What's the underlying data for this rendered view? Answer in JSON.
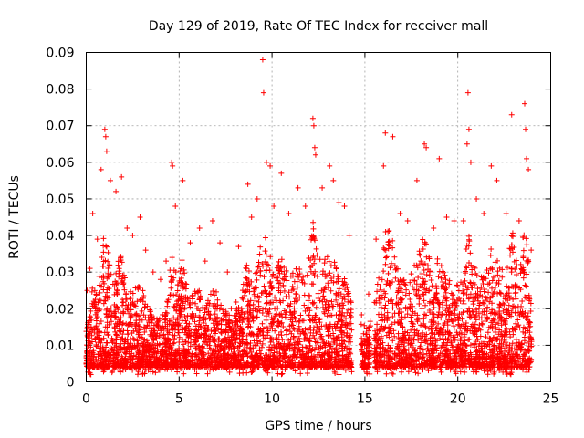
{
  "chart_data": {
    "type": "scatter",
    "title": "Day 129 of 2019, Rate Of TEC Index for receiver mall",
    "xlabel": "GPS time / hours",
    "ylabel": "ROTI / TECUs",
    "xlim": [
      0,
      25
    ],
    "ylim": [
      0,
      0.09
    ],
    "xticks": [
      0,
      5,
      10,
      15,
      20,
      25
    ],
    "xtick_labels": [
      "0",
      "5",
      "10",
      "15",
      "20",
      "25"
    ],
    "yticks": [
      0,
      0.01,
      0.02,
      0.03,
      0.04,
      0.05,
      0.06,
      0.07,
      0.08,
      0.09
    ],
    "ytick_labels": [
      "0",
      "0.01",
      "0.02",
      "0.03",
      "0.04",
      "0.05",
      "0.06",
      "0.07",
      "0.08",
      "0.09"
    ],
    "grid": true,
    "marker": "+",
    "color": "#ff0000",
    "data_gaps_hours": [
      [
        14.3,
        14.8
      ],
      [
        15.3,
        15.5
      ]
    ],
    "series": [
      {
        "name": "ROTI",
        "points": [
          [
            0.05,
            0.025
          ],
          [
            0.2,
            0.031
          ],
          [
            0.35,
            0.046
          ],
          [
            0.6,
            0.039
          ],
          [
            0.8,
            0.058
          ],
          [
            1.0,
            0.069
          ],
          [
            1.05,
            0.067
          ],
          [
            1.1,
            0.063
          ],
          [
            1.3,
            0.055
          ],
          [
            1.6,
            0.052
          ],
          [
            1.9,
            0.056
          ],
          [
            2.2,
            0.042
          ],
          [
            2.5,
            0.04
          ],
          [
            2.9,
            0.045
          ],
          [
            3.2,
            0.036
          ],
          [
            3.6,
            0.03
          ],
          [
            4.0,
            0.028
          ],
          [
            4.3,
            0.033
          ],
          [
            4.6,
            0.06
          ],
          [
            4.65,
            0.059
          ],
          [
            4.8,
            0.048
          ],
          [
            5.2,
            0.055
          ],
          [
            5.6,
            0.038
          ],
          [
            6.1,
            0.042
          ],
          [
            6.4,
            0.033
          ],
          [
            6.8,
            0.044
          ],
          [
            7.2,
            0.038
          ],
          [
            7.6,
            0.03
          ],
          [
            8.2,
            0.037
          ],
          [
            8.7,
            0.054
          ],
          [
            8.9,
            0.045
          ],
          [
            9.2,
            0.05
          ],
          [
            9.5,
            0.088
          ],
          [
            9.55,
            0.079
          ],
          [
            9.7,
            0.06
          ],
          [
            9.9,
            0.059
          ],
          [
            10.1,
            0.048
          ],
          [
            10.5,
            0.057
          ],
          [
            10.9,
            0.046
          ],
          [
            11.4,
            0.053
          ],
          [
            11.8,
            0.048
          ],
          [
            12.2,
            0.072
          ],
          [
            12.25,
            0.07
          ],
          [
            12.3,
            0.064
          ],
          [
            12.35,
            0.062
          ],
          [
            12.7,
            0.053
          ],
          [
            13.1,
            0.059
          ],
          [
            13.3,
            0.055
          ],
          [
            13.6,
            0.049
          ],
          [
            13.9,
            0.048
          ],
          [
            14.15,
            0.04
          ],
          [
            15.2,
            0.024
          ],
          [
            15.6,
            0.039
          ],
          [
            16.0,
            0.059
          ],
          [
            16.1,
            0.068
          ],
          [
            16.5,
            0.067
          ],
          [
            16.9,
            0.046
          ],
          [
            17.3,
            0.044
          ],
          [
            17.8,
            0.055
          ],
          [
            18.2,
            0.065
          ],
          [
            18.3,
            0.064
          ],
          [
            18.7,
            0.042
          ],
          [
            19.0,
            0.061
          ],
          [
            19.4,
            0.045
          ],
          [
            19.8,
            0.044
          ],
          [
            20.3,
            0.044
          ],
          [
            20.5,
            0.065
          ],
          [
            20.55,
            0.079
          ],
          [
            20.6,
            0.069
          ],
          [
            20.7,
            0.06
          ],
          [
            21.0,
            0.05
          ],
          [
            21.4,
            0.046
          ],
          [
            21.8,
            0.059
          ],
          [
            22.1,
            0.055
          ],
          [
            22.6,
            0.046
          ],
          [
            22.9,
            0.073
          ],
          [
            23.3,
            0.044
          ],
          [
            23.6,
            0.076
          ],
          [
            23.65,
            0.069
          ],
          [
            23.7,
            0.061
          ],
          [
            23.8,
            0.058
          ],
          [
            23.95,
            0.036
          ]
        ]
      }
    ]
  }
}
